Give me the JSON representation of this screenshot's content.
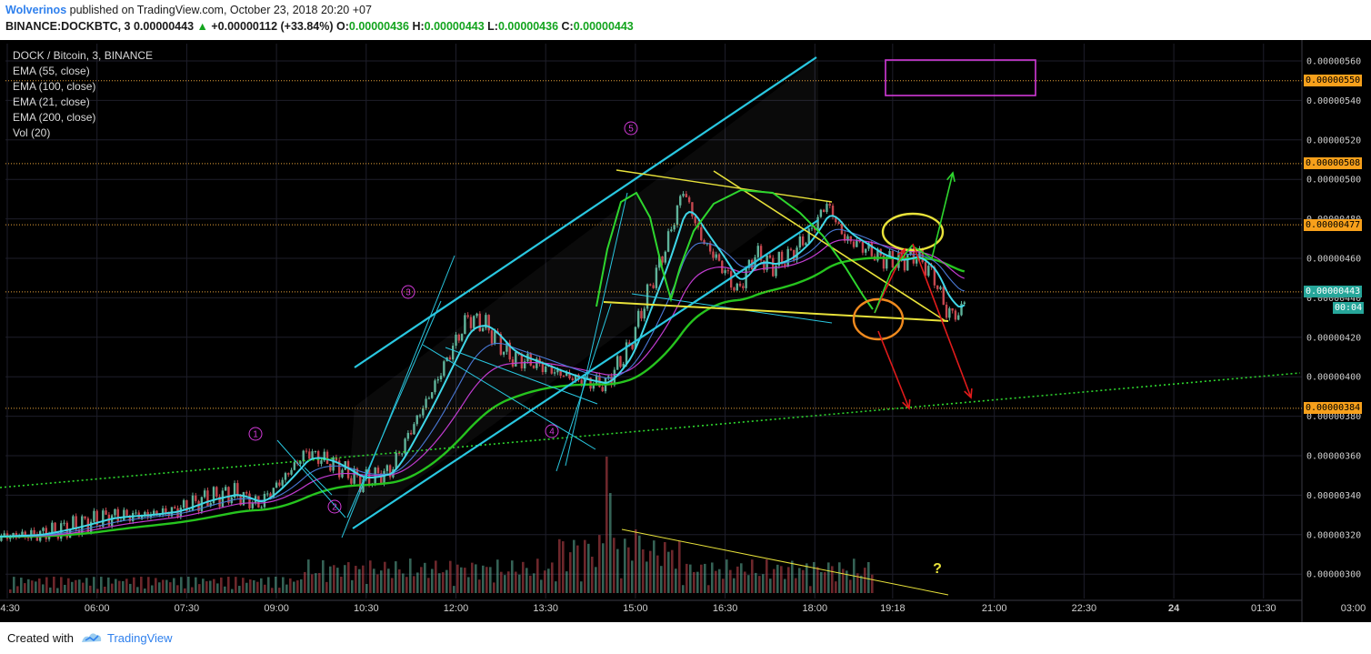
{
  "header": {
    "author": "Wolverinos",
    "published": "published on TradingView.com, October 23, 2018 20:20 +07",
    "symbol": "BINANCE:DOCKBTC, 3",
    "last_price": "0.00000443",
    "up_arrow": "▲",
    "change": "+0.00000112 (+33.84%)",
    "o_label": "O:",
    "o_value": "0.00000436",
    "h_label": "H:",
    "h_value": "0.00000443",
    "l_label": "L:",
    "l_value": "0.00000436",
    "c_label": "C:",
    "c_value": "0.00000443"
  },
  "legend": {
    "title": "DOCK / Bitcoin, 3, BINANCE",
    "ema55": "EMA (55, close)",
    "ema100": "EMA (100, close)",
    "ema21": "EMA (21, close)",
    "ema200": "EMA (200, close)",
    "vol": "Vol (20)"
  },
  "footer": {
    "created_with": "Created with",
    "brand": "TradingView"
  },
  "colors": {
    "background": "#000000",
    "grid": "#1e1e2a",
    "candle_up": "#5fb39a",
    "candle_down": "#c6474f",
    "ema21": "#3fd7e8",
    "ema55": "#4a79d6",
    "ema100": "#c23bd1",
    "ema200": "#26c41e",
    "trend_cyan": "#29c7e0",
    "yellow": "#e8e23a",
    "green_arrow": "#2ed62e",
    "red_arrow": "#e01b1b",
    "orange_circle": "#f08a1e",
    "magenta_box": "#d23ad8",
    "level_line": "#e8a23a"
  },
  "chart_data": {
    "type": "candlestick",
    "symbol": "DOCK / Bitcoin, 3, BINANCE",
    "y_ticks": [
      "0.00000560",
      "0.00000540",
      "0.00000520",
      "0.00000500",
      "0.00000480",
      "0.00000460",
      "0.00000440",
      "0.00000420",
      "0.00000400",
      "0.00000380",
      "0.00000360",
      "0.00000340",
      "0.00000320",
      "0.00000300"
    ],
    "y_tick_values": [
      5.6e-06,
      5.4e-06,
      5.2e-06,
      5e-06,
      4.8e-06,
      4.6e-06,
      4.4e-06,
      4.2e-06,
      4e-06,
      3.8e-06,
      3.6e-06,
      3.4e-06,
      3.2e-06,
      3e-06
    ],
    "x_ticks": [
      "04:30",
      "06:00",
      "07:30",
      "09:00",
      "10:30",
      "12:00",
      "13:30",
      "15:00",
      "16:30",
      "18:00",
      "19:18",
      "21:00",
      "22:30",
      "24",
      "01:30",
      "03:00"
    ],
    "x_tick_times_hours": [
      4.5,
      6.0,
      7.5,
      9.0,
      10.5,
      12.0,
      13.5,
      15.0,
      16.5,
      18.0,
      19.3,
      21.0,
      22.5,
      24.0,
      25.5,
      27.0
    ],
    "horizontal_levels": [
      {
        "label": "0.00000550",
        "value": 5.5e-06
      },
      {
        "label": "0.00000508",
        "value": 5.08e-06
      },
      {
        "label": "0.00000477",
        "value": 4.77e-06
      },
      {
        "label": "0.00000443",
        "value": 4.43e-06
      },
      {
        "label": "0.00000384",
        "value": 3.84e-06
      }
    ],
    "current_price": {
      "label": "0.00000443",
      "countdown": "00:04"
    },
    "wave_labels": [
      "1",
      "2",
      "3",
      "4",
      "5"
    ],
    "question_mark": "?",
    "close_series": [
      {
        "t": 4.3,
        "v": 3.19e-06
      },
      {
        "t": 5.0,
        "v": 3.2e-06
      },
      {
        "t": 5.6,
        "v": 3.24e-06
      },
      {
        "t": 6.2,
        "v": 3.29e-06
      },
      {
        "t": 6.8,
        "v": 3.3e-06
      },
      {
        "t": 7.3,
        "v": 3.32e-06
      },
      {
        "t": 7.8,
        "v": 3.38e-06
      },
      {
        "t": 8.3,
        "v": 3.41e-06
      },
      {
        "t": 8.7,
        "v": 3.35e-06
      },
      {
        "t": 9.1,
        "v": 3.48e-06
      },
      {
        "t": 9.5,
        "v": 3.62e-06
      },
      {
        "t": 10.0,
        "v": 3.55e-06
      },
      {
        "t": 10.4,
        "v": 3.47e-06
      },
      {
        "t": 10.9,
        "v": 3.52e-06
      },
      {
        "t": 11.3,
        "v": 3.76e-06
      },
      {
        "t": 11.6,
        "v": 3.93e-06
      },
      {
        "t": 11.9,
        "v": 4.12e-06
      },
      {
        "t": 12.2,
        "v": 4.3e-06
      },
      {
        "t": 12.5,
        "v": 4.26e-06
      },
      {
        "t": 12.9,
        "v": 4.1e-06
      },
      {
        "t": 13.3,
        "v": 4.07e-06
      },
      {
        "t": 13.7,
        "v": 4.02e-06
      },
      {
        "t": 14.1,
        "v": 3.98e-06
      },
      {
        "t": 14.5,
        "v": 3.96e-06
      },
      {
        "t": 14.9,
        "v": 4.15e-06
      },
      {
        "t": 15.2,
        "v": 4.42e-06
      },
      {
        "t": 15.5,
        "v": 4.65e-06
      },
      {
        "t": 15.8,
        "v": 4.95e-06
      },
      {
        "t": 16.1,
        "v": 4.7e-06
      },
      {
        "t": 16.4,
        "v": 4.58e-06
      },
      {
        "t": 16.7,
        "v": 4.43e-06
      },
      {
        "t": 17.0,
        "v": 4.62e-06
      },
      {
        "t": 17.3,
        "v": 4.56e-06
      },
      {
        "t": 17.6,
        "v": 4.62e-06
      },
      {
        "t": 17.9,
        "v": 4.72e-06
      },
      {
        "t": 18.2,
        "v": 4.88e-06
      },
      {
        "t": 18.5,
        "v": 4.7e-06
      },
      {
        "t": 18.8,
        "v": 4.66e-06
      },
      {
        "t": 19.1,
        "v": 4.6e-06
      },
      {
        "t": 19.4,
        "v": 4.58e-06
      },
      {
        "t": 19.7,
        "v": 4.62e-06
      },
      {
        "t": 20.0,
        "v": 4.5e-06
      },
      {
        "t": 20.2,
        "v": 4.33e-06
      },
      {
        "t": 20.4,
        "v": 4.31e-06
      },
      {
        "t": 20.55,
        "v": 4.43e-06
      }
    ]
  }
}
